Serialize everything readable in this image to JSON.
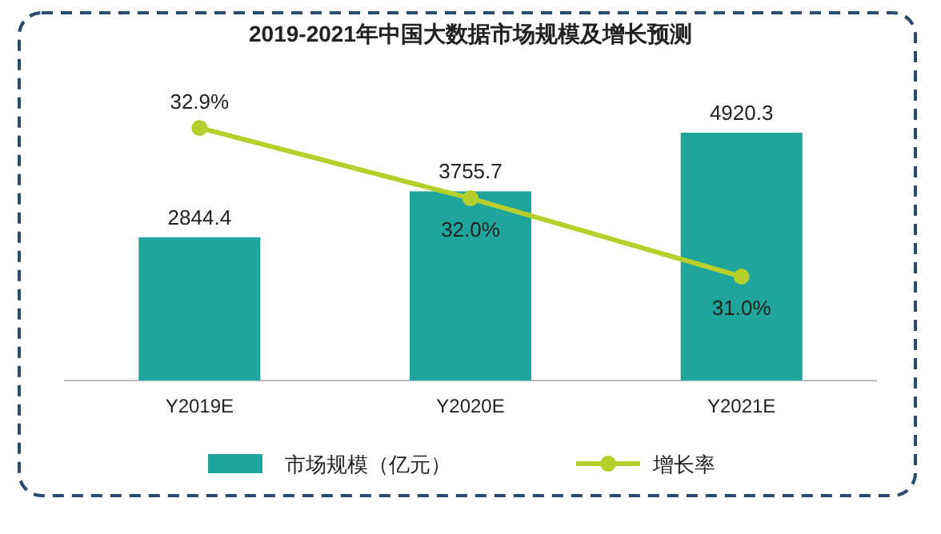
{
  "chart_data": {
    "type": "bar",
    "title": "2019-2021年中国大数据市场规模及增长预测",
    "categories": [
      "Y2019E",
      "Y2020E",
      "Y2021E"
    ],
    "series": [
      {
        "name": "市场规模（亿元）",
        "color": "#1fa59c",
        "values": [
          2844.4,
          3755.7,
          4920.3
        ]
      },
      {
        "name": "增长率",
        "type": "line",
        "axis": "y2",
        "color": "#b7cf2a",
        "values": [
          32.9,
          32.0,
          31.0
        ],
        "value_labels": [
          "32.9%",
          "32.0%",
          "31.0%"
        ]
      }
    ],
    "data_labels": true,
    "legend": "bottom",
    "marker": "circle",
    "tick_labels": "x"
  }
}
